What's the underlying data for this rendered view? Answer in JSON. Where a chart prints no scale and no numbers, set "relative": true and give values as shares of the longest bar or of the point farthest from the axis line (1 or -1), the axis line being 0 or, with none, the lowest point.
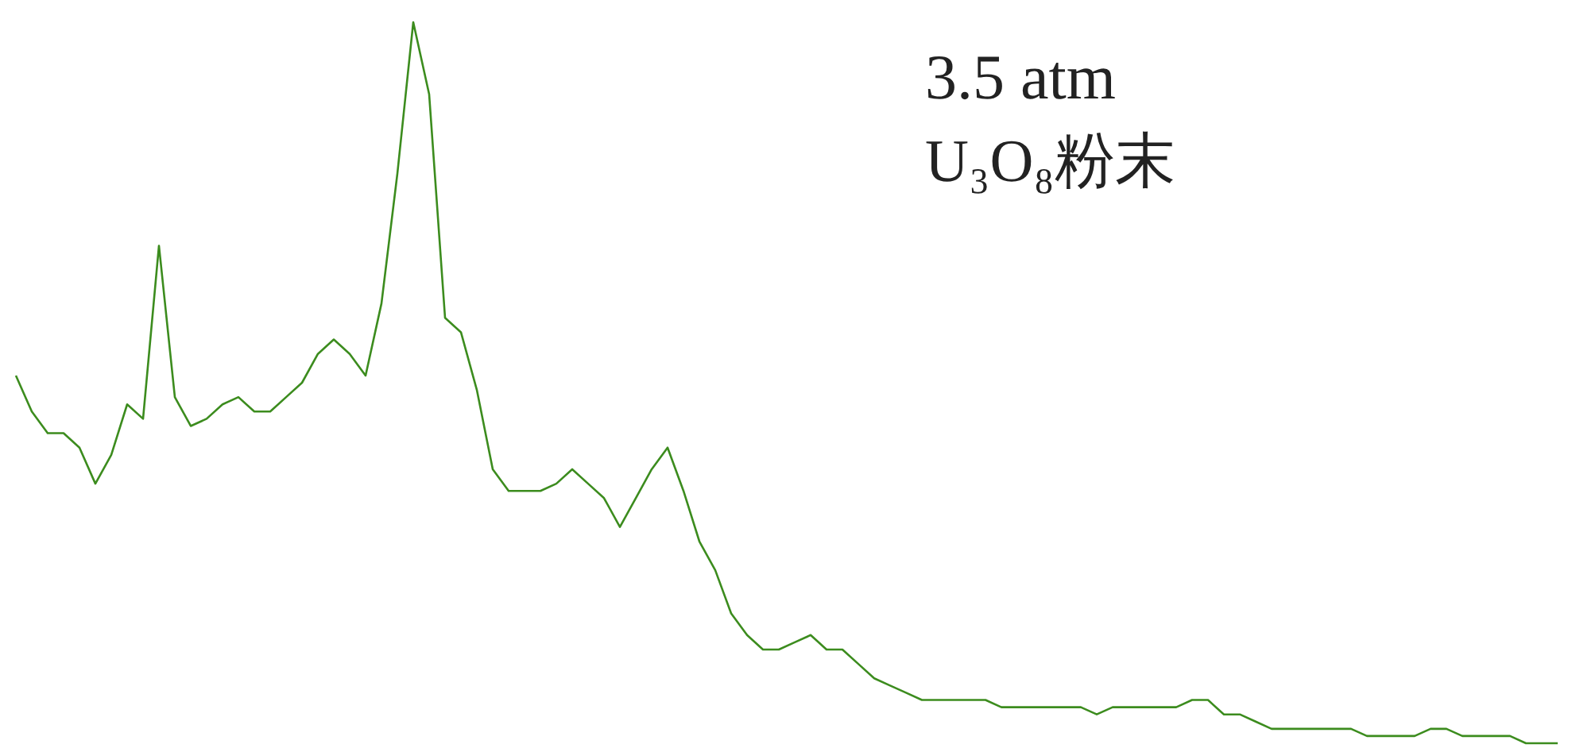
{
  "chart_data": {
    "type": "line",
    "relative": true,
    "categories": [
      null,
      null,
      null,
      null,
      null,
      null,
      null,
      null,
      null,
      null,
      null,
      null,
      null,
      null,
      null,
      null,
      null,
      null,
      null,
      null,
      null,
      null,
      null,
      null,
      null,
      null,
      null,
      null,
      null,
      null,
      null,
      null,
      null,
      null,
      null,
      null,
      null,
      null,
      null,
      null,
      null,
      null,
      null,
      null,
      null,
      null,
      null,
      null,
      null,
      null,
      null,
      null,
      null,
      null,
      null,
      null,
      null,
      null,
      null,
      null,
      null,
      null,
      null,
      null,
      null,
      null,
      null,
      null,
      null,
      null,
      null,
      null,
      null,
      null,
      null,
      null,
      null,
      null,
      null,
      null,
      null,
      null,
      null,
      null,
      null,
      null,
      null,
      null,
      null,
      null,
      null,
      null,
      null,
      null,
      null,
      null,
      null,
      null
    ],
    "series": [
      {
        "color": "#3c8c1e",
        "values": [
          0.51,
          0.46,
          0.43,
          0.43,
          0.41,
          0.36,
          0.4,
          0.47,
          0.45,
          0.69,
          0.48,
          0.44,
          0.45,
          0.47,
          0.48,
          0.46,
          0.46,
          0.48,
          0.5,
          0.54,
          0.56,
          0.54,
          0.51,
          0.61,
          0.79,
          1,
          0.9,
          0.59,
          0.57,
          0.49,
          0.38,
          0.35,
          0.35,
          0.35,
          0.36,
          0.38,
          0.36,
          0.34,
          0.3,
          0.34,
          0.38,
          0.41,
          0.35,
          0.28,
          0.24,
          0.18,
          0.15,
          0.13,
          0.13,
          0.14,
          0.15,
          0.13,
          0.13,
          0.11,
          0.09,
          0.08,
          0.07,
          0.06,
          0.06,
          0.06,
          0.06,
          0.06,
          0.05,
          0.05,
          0.05,
          0.05,
          0.05,
          0.05,
          0.04,
          0.05,
          0.05,
          0.05,
          0.05,
          0.05,
          0.06,
          0.06,
          0.04,
          0.04,
          0.03,
          0.02,
          0.02,
          0.02,
          0.02,
          0.02,
          0.02,
          0.01,
          0.01,
          0.01,
          0.01,
          0.02,
          0.02,
          0.01,
          0.01,
          0.01,
          0.01,
          0,
          0,
          0
        ]
      }
    ],
    "annotations": [
      "3.5 atm",
      "U₃O₈粉末"
    ]
  }
}
